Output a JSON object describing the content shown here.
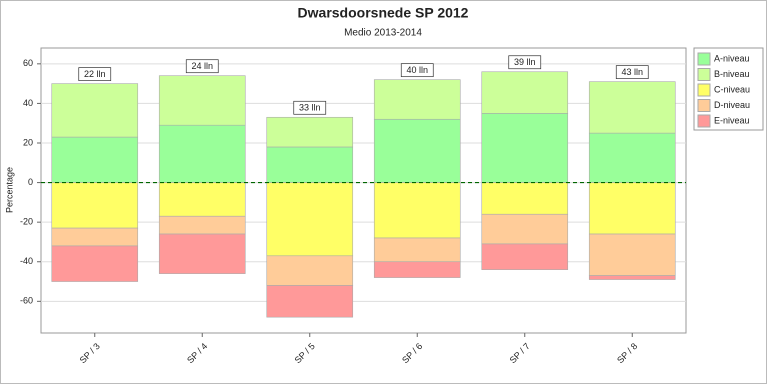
{
  "chart_data": {
    "type": "diverging_stacked_bar",
    "title": "Dwarsdoorsnede SP 2012",
    "subtitle": "Medio 2013-2014",
    "y_label": "Percentage",
    "categories": [
      "SP / 3",
      "SP / 4",
      "SP / 5",
      "SP / 6",
      "SP / 7",
      "SP / 8"
    ],
    "bar_labels": [
      "22 lln",
      "24 lln",
      "33 lln",
      "40 lln",
      "39 lln",
      "43 lln"
    ],
    "series": [
      {
        "name": "A-niveau",
        "color": "#99ff99",
        "values": [
          23,
          29,
          18,
          32,
          35,
          25
        ]
      },
      {
        "name": "B-niveau",
        "color": "#ccff99",
        "values": [
          27,
          25,
          15,
          20,
          21,
          26
        ]
      },
      {
        "name": "C-niveau",
        "color": "#ffff66",
        "values": [
          -23,
          -17,
          -37,
          -28,
          -16,
          -26
        ]
      },
      {
        "name": "D-niveau",
        "color": "#ffcc99",
        "values": [
          -9,
          -9,
          -15,
          -12,
          -15,
          -21
        ]
      },
      {
        "name": "E-niveau",
        "color": "#ff9999",
        "values": [
          -18,
          -20,
          -16,
          -8,
          -13,
          -2
        ]
      }
    ],
    "ylim": [
      -76,
      68
    ],
    "yticks": [
      -60,
      -40,
      -20,
      0,
      20,
      40,
      60
    ],
    "grid": true,
    "legend": "right"
  }
}
